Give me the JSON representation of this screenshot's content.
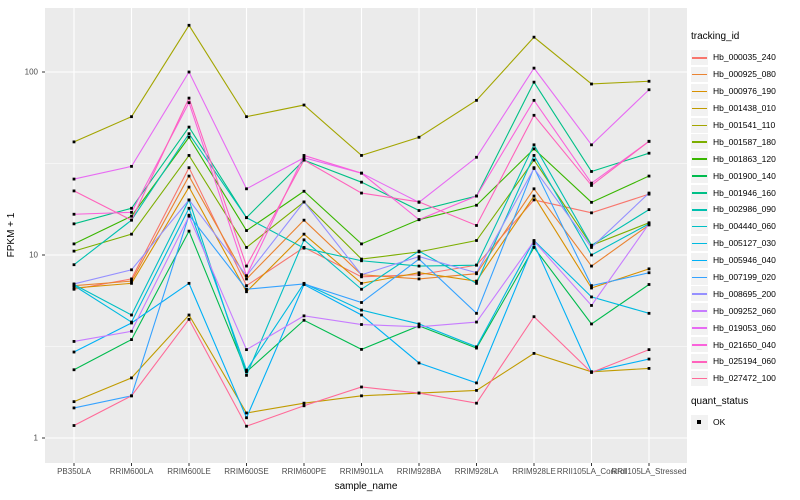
{
  "figure": {
    "y_axis_title": "FPKM + 1",
    "x_axis_title": "sample_name",
    "legend": {
      "tracking_title": "tracking_id",
      "quant_title": "quant_status",
      "quant_label": "OK"
    },
    "colors": {
      "panel_background": "#EBEBEB",
      "gridline": "#FFFFFF",
      "tick_text": "#4D4D4D",
      "point": "#000000"
    }
  },
  "chart_data": {
    "type": "line",
    "title": "",
    "xlabel": "sample_name",
    "ylabel": "FPKM + 1",
    "y_scale": "log10",
    "ylim": [
      1,
      224
    ],
    "y_ticks": [
      {
        "label": "100",
        "value": 100
      },
      {
        "label": "10",
        "value": 10
      },
      {
        "label": "1",
        "value": 1
      }
    ],
    "y_minor_ticks": [
      31.62,
      3.162
    ],
    "grid": true,
    "legend_position": "right",
    "point_shape": "filled-black-square",
    "quant_status": "OK",
    "categories": [
      "PB350LA",
      "RRIM600LA",
      "RRIM600LE",
      "RRIM600SE",
      "RRIM600PE",
      "RRIM901LA",
      "RRIM928BA",
      "RRIM928LA",
      "RRIM928LE",
      "RRII105LA_Control",
      "RRII105LA_Stressed"
    ],
    "series": [
      {
        "name": "Hb_000035_240",
        "color": "#F8766D",
        "values": [
          6.5,
          7.4,
          30,
          6.8,
          11,
          7.6,
          7.8,
          8.8,
          20,
          17,
          21.5
        ]
      },
      {
        "name": "Hb_000925_080",
        "color": "#EA8331",
        "values": [
          6.8,
          7.2,
          27,
          7.4,
          15.5,
          7.8,
          7.4,
          7.9,
          23,
          8.7,
          14.6
        ]
      },
      {
        "name": "Hb_000976_190",
        "color": "#D89000",
        "values": [
          6.6,
          7.0,
          23.5,
          6.3,
          13,
          7.0,
          8.0,
          7.2,
          21,
          6.6,
          8.4
        ]
      },
      {
        "name": "Hb_001438_010",
        "color": "#C09B00",
        "values": [
          1.58,
          2.13,
          4.7,
          1.37,
          1.55,
          1.7,
          1.76,
          1.82,
          2.9,
          2.3,
          2.4
        ]
      },
      {
        "name": "Hb_001541_110",
        "color": "#A3A500",
        "values": [
          41.5,
          57,
          180,
          57,
          66,
          35,
          44,
          70,
          155,
          86,
          89
        ]
      },
      {
        "name": "Hb_001587_180",
        "color": "#7CAE00",
        "values": [
          10.5,
          13,
          35,
          11,
          19.5,
          9.5,
          10.4,
          12,
          33,
          11.3,
          15
        ]
      },
      {
        "name": "Hb_001863_120",
        "color": "#39B600",
        "values": [
          11.5,
          16.3,
          44,
          13.6,
          22.3,
          11.5,
          15.6,
          18.7,
          38,
          19.4,
          27
        ]
      },
      {
        "name": "Hb_001900_140",
        "color": "#00BB4E",
        "values": [
          2.36,
          3.45,
          13.5,
          2.3,
          4.4,
          3.05,
          4.1,
          3.1,
          11,
          4.2,
          6.9
        ]
      },
      {
        "name": "Hb_001946_160",
        "color": "#00C087",
        "values": [
          14.8,
          18,
          50,
          16,
          33,
          25,
          17.5,
          21,
          88,
          28.6,
          36
        ]
      },
      {
        "name": "Hb_002986_090",
        "color": "#00C0AF",
        "values": [
          8.85,
          15.5,
          46,
          16,
          10.9,
          9.3,
          8.7,
          8.8,
          40,
          11.3,
          17.7
        ]
      },
      {
        "name": "Hb_004440_060",
        "color": "#00BFC4",
        "values": [
          6.9,
          4.7,
          20,
          2.2,
          12.1,
          6.5,
          10.5,
          7.0,
          35,
          10,
          14.8
        ]
      },
      {
        "name": "Hb_005127_030",
        "color": "#00BAE0",
        "values": [
          6.8,
          4.3,
          18,
          2.35,
          7.0,
          5.0,
          4.2,
          3.15,
          12,
          5.9,
          4.8
        ]
      },
      {
        "name": "Hb_005946_040",
        "color": "#00B0F6",
        "values": [
          2.95,
          4.25,
          7.0,
          1.29,
          6.9,
          4.7,
          2.57,
          2.0,
          11.5,
          2.3,
          2.7
        ]
      },
      {
        "name": "Hb_007199_020",
        "color": "#35A2FF",
        "values": [
          1.46,
          1.7,
          16.5,
          6.5,
          6.95,
          5.5,
          9.5,
          4.8,
          30,
          6.8,
          8.0
        ]
      },
      {
        "name": "Hb_008695_200",
        "color": "#9590FF",
        "values": [
          6.95,
          8.3,
          20,
          7.7,
          19.5,
          7.8,
          9.8,
          8.0,
          29.7,
          11,
          21.8
        ]
      },
      {
        "name": "Hb_009252_060",
        "color": "#C77CFF",
        "values": [
          3.37,
          3.83,
          16.3,
          3.04,
          4.65,
          4.17,
          4.05,
          4.3,
          11.9,
          5.3,
          14.8
        ]
      },
      {
        "name": "Hb_019053_060",
        "color": "#E76BF3",
        "values": [
          26,
          30.5,
          100,
          23,
          34,
          28,
          19.4,
          34.2,
          105,
          40,
          80
        ]
      },
      {
        "name": "Hb_021650_040",
        "color": "#FA62DB",
        "values": [
          16.7,
          17.1,
          68,
          7.7,
          35,
          28,
          15.6,
          21,
          70,
          24.7,
          41.8
        ]
      },
      {
        "name": "Hb_025194_060",
        "color": "#FF62BC",
        "values": [
          22.4,
          15.5,
          72,
          8.7,
          33,
          21.8,
          19.5,
          14.5,
          58,
          24,
          41.8
        ]
      },
      {
        "name": "Hb_027472_100",
        "color": "#FF6A98",
        "values": [
          1.17,
          1.7,
          4.45,
          1.16,
          1.5,
          1.9,
          1.76,
          1.55,
          4.6,
          2.28,
          3.04
        ]
      }
    ]
  }
}
